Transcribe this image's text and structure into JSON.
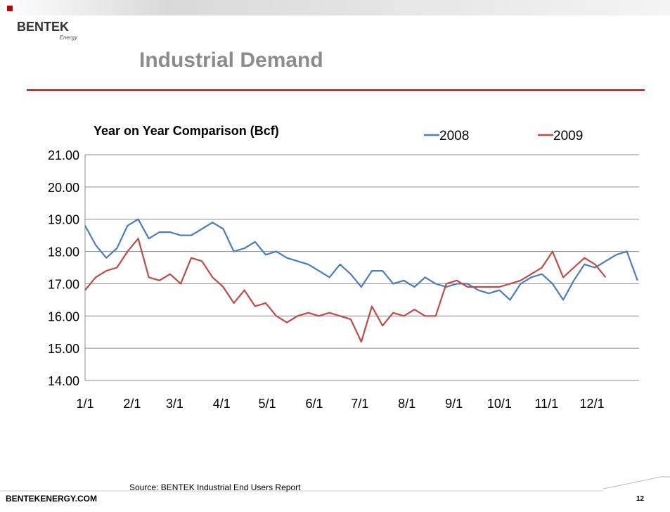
{
  "header": {
    "brand": "BENTEK",
    "brand_sub": "Energy",
    "title": "Industrial Demand"
  },
  "footer": {
    "site": "BENTEKENERGY.COM",
    "source": "Source: BENTEK Industrial End Users Report",
    "page": "12"
  },
  "chart_data": {
    "type": "line",
    "title": "Year on Year Comparison (Bcf)",
    "x": [
      1,
      8,
      15,
      22,
      29,
      36,
      43,
      50,
      57,
      64,
      71,
      78,
      85,
      92,
      99,
      106,
      113,
      120,
      127,
      134,
      141,
      148,
      155,
      162,
      169,
      176,
      183,
      190,
      197,
      204,
      211,
      218,
      225,
      232,
      239,
      246,
      253,
      260,
      267,
      274,
      281,
      288,
      295,
      302,
      309,
      316,
      323,
      330,
      337,
      344,
      351,
      358,
      365
    ],
    "series": [
      {
        "name": "2008",
        "color": "#4a7ebb",
        "values": [
          18.8,
          18.2,
          17.8,
          18.1,
          18.8,
          19.0,
          18.4,
          18.6,
          18.6,
          18.5,
          18.5,
          18.7,
          18.9,
          18.7,
          18.0,
          18.1,
          18.3,
          17.9,
          18.0,
          17.8,
          17.7,
          17.6,
          17.4,
          17.2,
          17.6,
          17.3,
          16.9,
          17.4,
          17.4,
          17.0,
          17.1,
          16.9,
          17.2,
          17.0,
          16.9,
          17.0,
          17.0,
          16.8,
          16.7,
          16.8,
          16.5,
          17.0,
          17.2,
          17.3,
          17.0,
          16.5,
          17.1,
          17.6,
          17.5,
          17.7,
          17.9,
          18.0,
          17.1
        ]
      },
      {
        "name": "2009",
        "color": "#be4b48",
        "values": [
          16.8,
          17.2,
          17.4,
          17.5,
          18.0,
          18.4,
          17.2,
          17.1,
          17.3,
          17.0,
          17.8,
          17.7,
          17.2,
          16.9,
          16.4,
          16.8,
          16.3,
          16.4,
          16.0,
          15.8,
          16.0,
          16.1,
          16.0,
          16.1,
          16.0,
          15.9,
          15.2,
          16.3,
          15.7,
          16.1,
          16.0,
          16.2,
          16.0,
          16.0,
          17.0,
          17.1,
          16.9,
          16.9,
          16.9,
          16.9,
          17.0,
          17.1,
          17.3,
          17.5,
          18.0,
          17.2,
          17.5,
          17.8,
          17.6,
          17.2,
          null,
          null,
          null
        ]
      }
    ],
    "xlim": [
      1,
      366
    ],
    "xticks": [
      {
        "value": 1,
        "label": "1/1"
      },
      {
        "value": 32,
        "label": "2/1"
      },
      {
        "value": 60,
        "label": "3/1"
      },
      {
        "value": 91,
        "label": "4/1"
      },
      {
        "value": 121,
        "label": "5/1"
      },
      {
        "value": 152,
        "label": "6/1"
      },
      {
        "value": 182,
        "label": "7/1"
      },
      {
        "value": 213,
        "label": "8/1"
      },
      {
        "value": 244,
        "label": "9/1"
      },
      {
        "value": 274,
        "label": "10/1"
      },
      {
        "value": 305,
        "label": "11/1"
      },
      {
        "value": 335,
        "label": "12/1"
      }
    ],
    "ylim": [
      14,
      21
    ],
    "yticks": [
      {
        "value": 14,
        "label": "14.00"
      },
      {
        "value": 15,
        "label": "15.00"
      },
      {
        "value": 16,
        "label": "16.00"
      },
      {
        "value": 17,
        "label": "17.00"
      },
      {
        "value": 18,
        "label": "18.00"
      },
      {
        "value": 19,
        "label": "19.00"
      },
      {
        "value": 20,
        "label": "20.00"
      },
      {
        "value": 21,
        "label": "21.00"
      }
    ],
    "grid": true,
    "legend": "top"
  }
}
